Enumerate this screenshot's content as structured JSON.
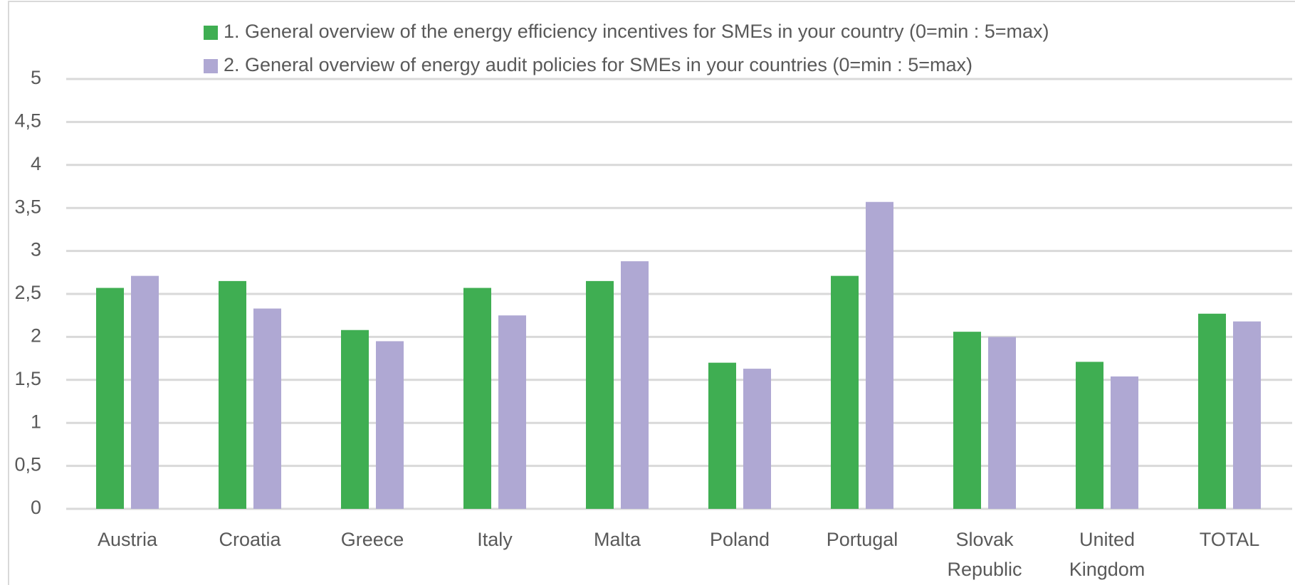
{
  "chart_data": {
    "type": "bar",
    "categories": [
      "Austria",
      "Croatia",
      "Greece",
      "Italy",
      "Malta",
      "Poland",
      "Portugal",
      "Slovak Republic",
      "United Kingdom",
      "TOTAL"
    ],
    "series": [
      {
        "name": "1. General overview of the energy efficiency incentives for SMEs in your country (0=min : 5=max)",
        "color": "#3fae52",
        "values": [
          2.57,
          2.65,
          2.08,
          2.57,
          2.65,
          1.7,
          2.71,
          2.06,
          1.71,
          2.27
        ]
      },
      {
        "name": "2. General overview of energy audit policies for SMEs in your countries (0=min : 5=max)",
        "color": "#afa8d3",
        "values": [
          2.71,
          2.33,
          1.95,
          2.25,
          2.88,
          1.63,
          3.57,
          2.0,
          1.54,
          2.18
        ]
      }
    ],
    "ylim": [
      0,
      5
    ],
    "yticks": [
      0,
      {
        "value": 0.5,
        "label": "0,5"
      },
      1,
      {
        "value": 1.5,
        "label": "1,5"
      },
      2,
      {
        "value": 2.5,
        "label": "2,5"
      },
      3,
      {
        "value": 3.5,
        "label": "3,5"
      },
      4,
      {
        "value": 4.5,
        "label": "4,5"
      },
      5
    ],
    "grid": true,
    "legend": "top"
  }
}
